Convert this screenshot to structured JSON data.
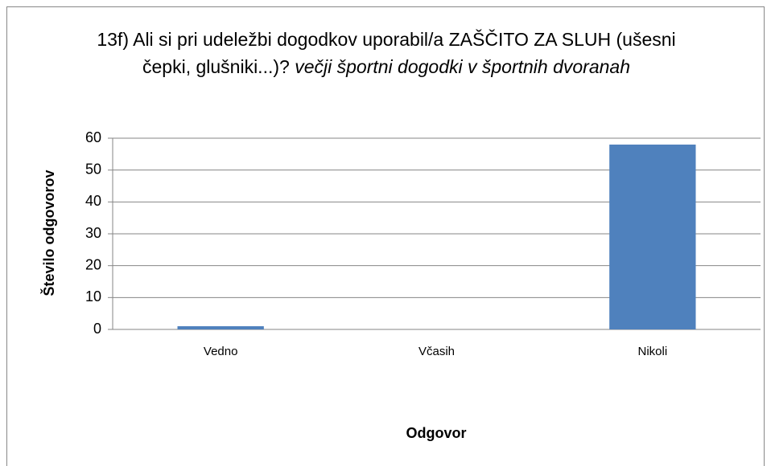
{
  "chart_data": {
    "type": "bar",
    "title": "13f) Ali si pri udeležbi dogodkov uporabil/a ZAŠČITO ZA SLUH (ušesni čepki, glušniki...)?",
    "title_italic": "večji športni dogodki v športnih dvoranah",
    "x_label": "Odgovor",
    "y_label": "Število odgovorov",
    "categories": [
      "Vedno",
      "Včasih",
      "Nikoli"
    ],
    "values": [
      1,
      0,
      58
    ],
    "color": "#4f81bd",
    "ylim": [
      0,
      60
    ],
    "yticks": [
      0,
      10,
      20,
      30,
      40,
      50,
      60
    ],
    "grid": true
  }
}
